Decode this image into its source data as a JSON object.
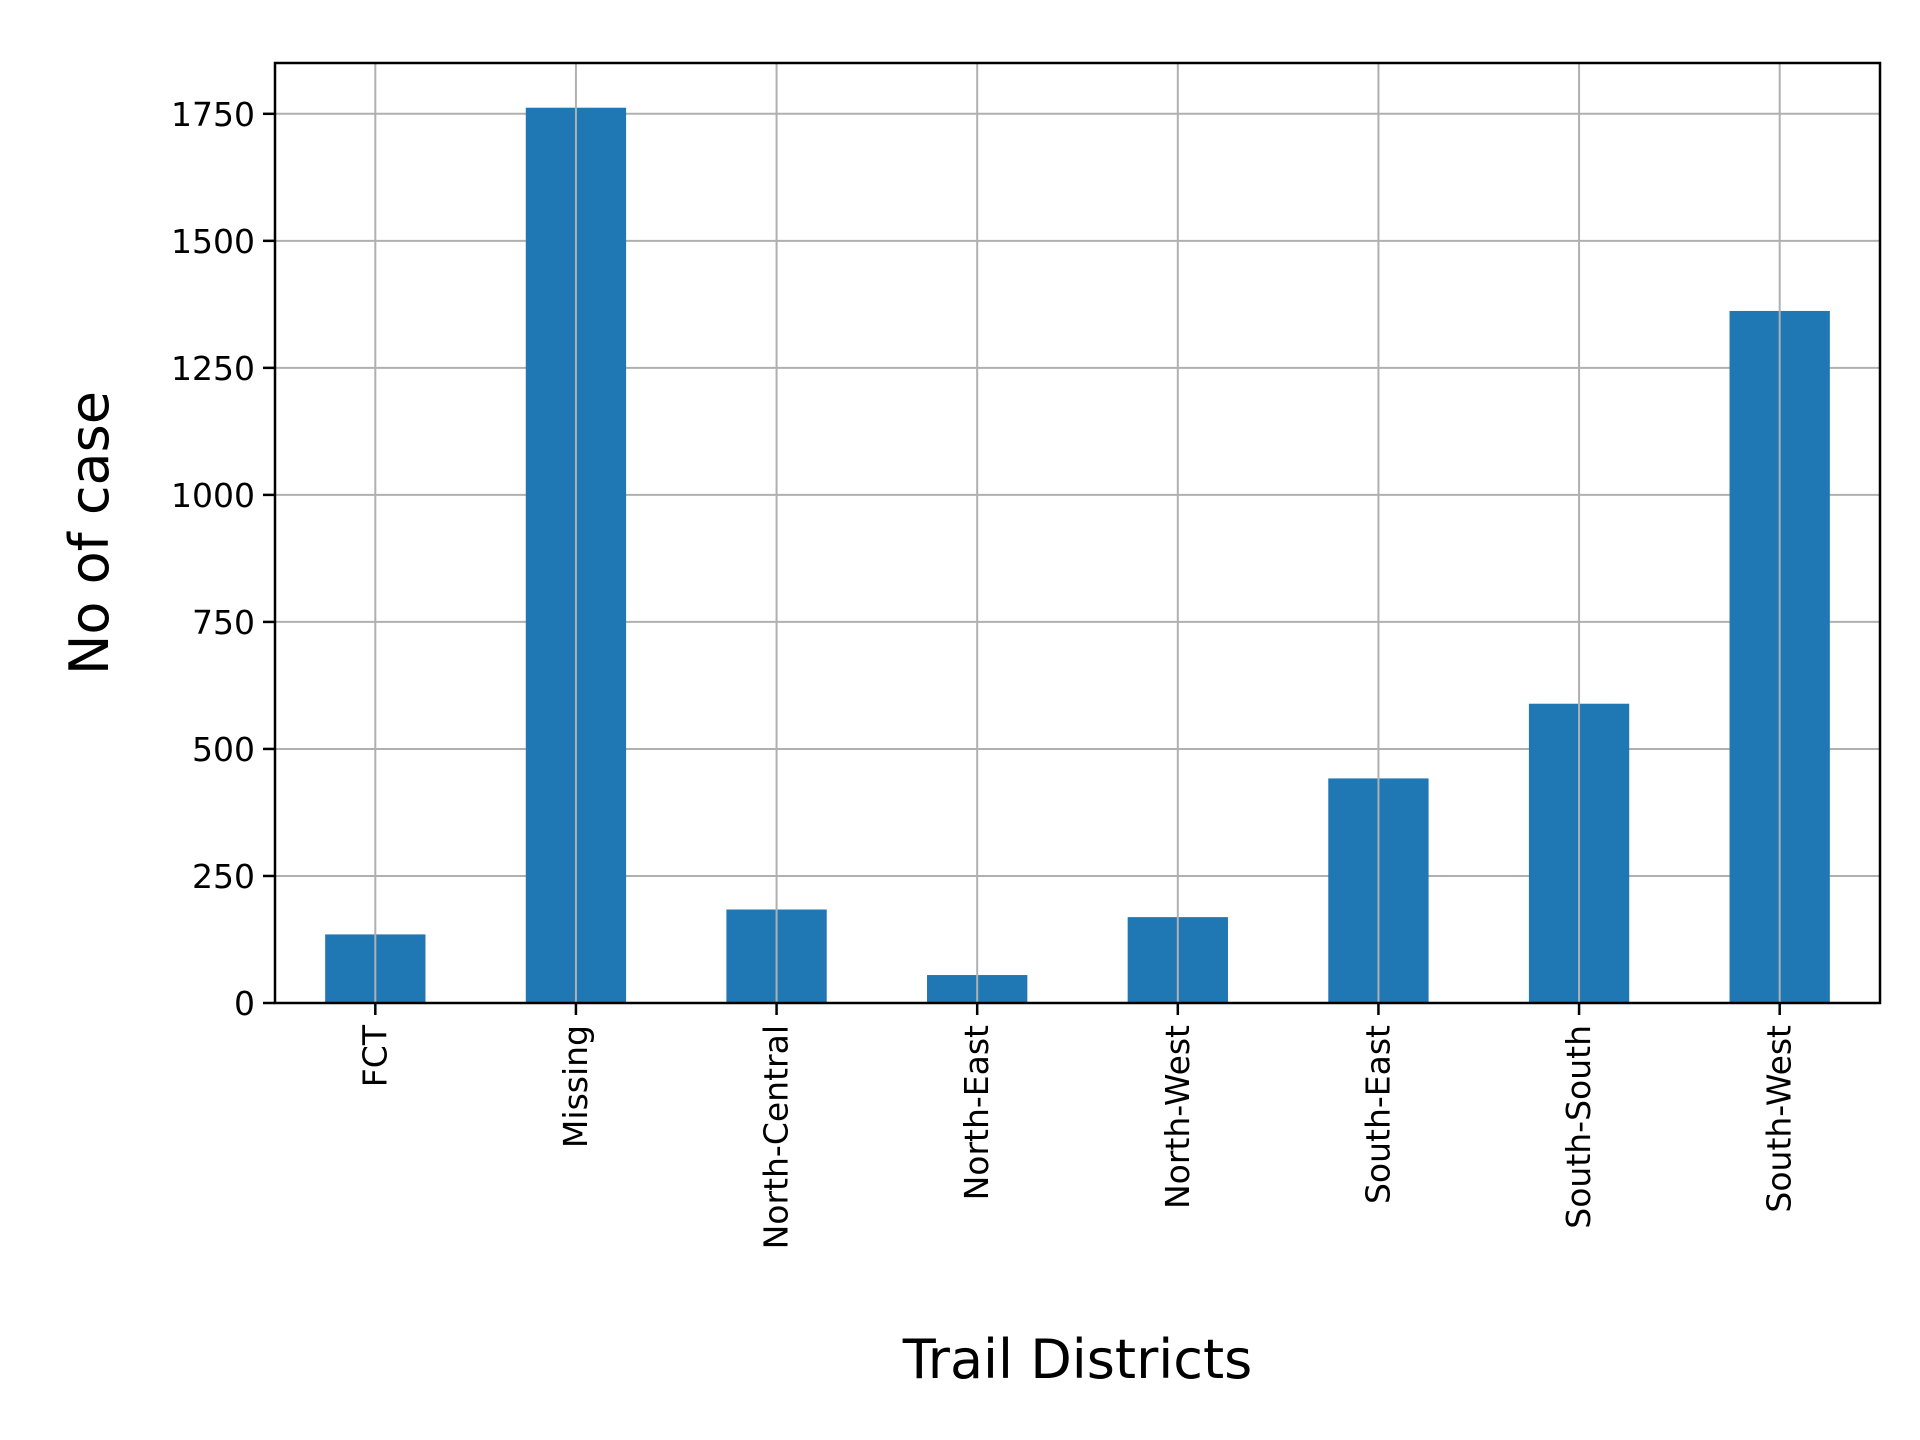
{
  "chart_data": {
    "type": "bar",
    "title": "",
    "xlabel": "Trail Districts",
    "ylabel": "No of case",
    "categories": [
      "FCT",
      "Missing",
      "North-Central",
      "North-East",
      "North-West",
      "South-East",
      "South-South",
      "South-West"
    ],
    "values": [
      135,
      1762,
      184,
      55,
      169,
      442,
      589,
      1362
    ],
    "ylim": [
      0,
      1850
    ],
    "yticks": [
      0,
      250,
      500,
      750,
      1000,
      1250,
      1500,
      1750
    ],
    "ytick_labels": [
      "0",
      "250",
      "500",
      "750",
      "1000",
      "1250",
      "1500",
      "1750"
    ],
    "grid": true,
    "legend": "none",
    "bar_color": "#1f77b4",
    "grid_color": "#b0b0b0",
    "x_tick_rotation": "vertical"
  }
}
